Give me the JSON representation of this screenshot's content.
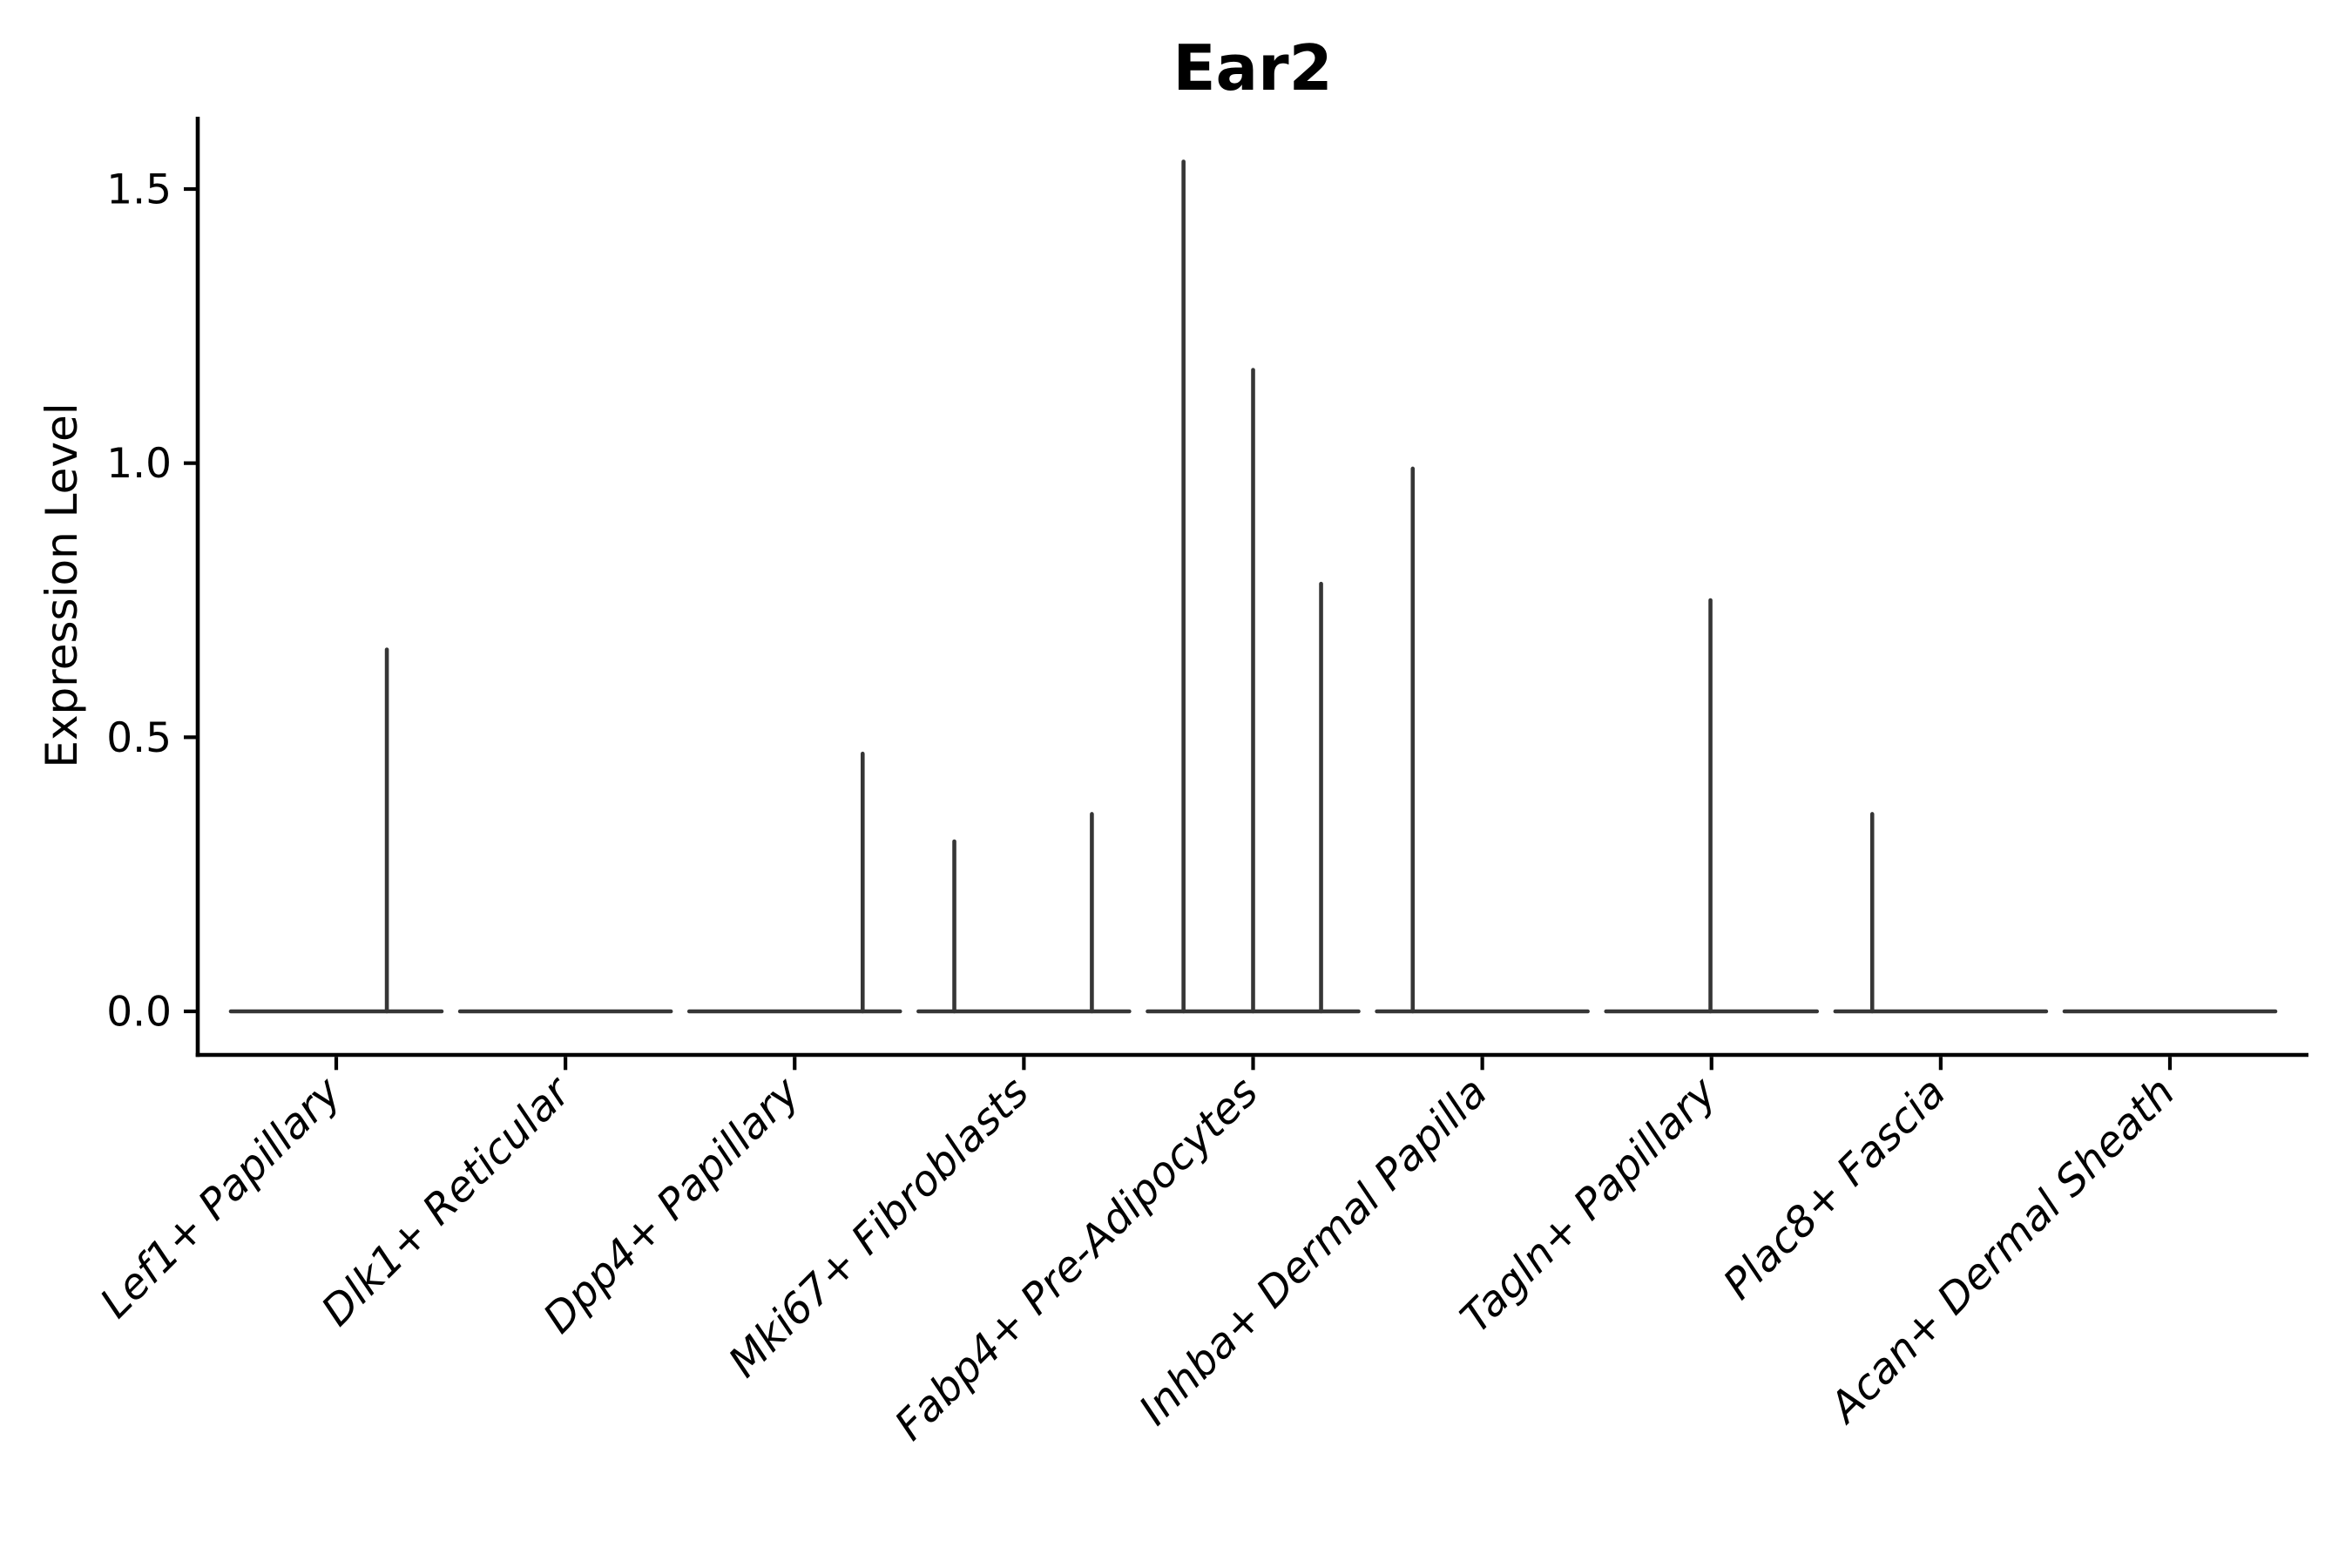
{
  "figure": {
    "title": "Ear2",
    "ylabel": "Expression Level"
  },
  "chart_data": {
    "type": "violin",
    "title": "Ear2",
    "xlabel": "",
    "ylabel": "Expression Level",
    "ylim": [
      -0.08,
      1.63
    ],
    "ytick_labels": [
      "0.0",
      "0.5",
      "1.0",
      "1.5"
    ],
    "ytick_values": [
      0,
      0.5,
      1.0,
      1.5
    ],
    "grid": false,
    "legend": "none",
    "baseline_value": 0.0,
    "description": "Expression collapsed at 0 for all clusters; thin density spikes mark maximum expressing cells",
    "axis_color": "#000000",
    "violin_color": "#363636",
    "categories": [
      {
        "label": "Lef1+ Papillary",
        "spikes": [
          {
            "offset_frac": 0.48,
            "value": 0.66
          }
        ]
      },
      {
        "label": "Dlk1+ Reticular",
        "spikes": []
      },
      {
        "label": "Dpp4+ Papillary",
        "spikes": [
          {
            "offset_frac": 0.645,
            "value": 0.47
          }
        ]
      },
      {
        "label": "Mki67+ Fibroblasts",
        "spikes": [
          {
            "offset_frac": -0.66,
            "value": 0.31
          },
          {
            "offset_frac": 0.645,
            "value": 0.36
          }
        ]
      },
      {
        "label": "Fabp4+ Pre-Adipocytes",
        "spikes": [
          {
            "offset_frac": -0.66,
            "value": 1.55
          },
          {
            "offset_frac": 0.0,
            "value": 1.17
          },
          {
            "offset_frac": 0.645,
            "value": 0.78
          }
        ]
      },
      {
        "label": "Inhba+ Dermal Papilla",
        "spikes": [
          {
            "offset_frac": -0.66,
            "value": 0.99
          }
        ]
      },
      {
        "label": "Tagln+ Papillary",
        "spikes": [
          {
            "offset_frac": -0.01,
            "value": 0.75
          }
        ]
      },
      {
        "label": "Plac8+ Fascia",
        "spikes": [
          {
            "offset_frac": -0.65,
            "value": 0.36
          }
        ]
      },
      {
        "label": "Acan+ Dermal Sheath",
        "spikes": []
      }
    ]
  }
}
